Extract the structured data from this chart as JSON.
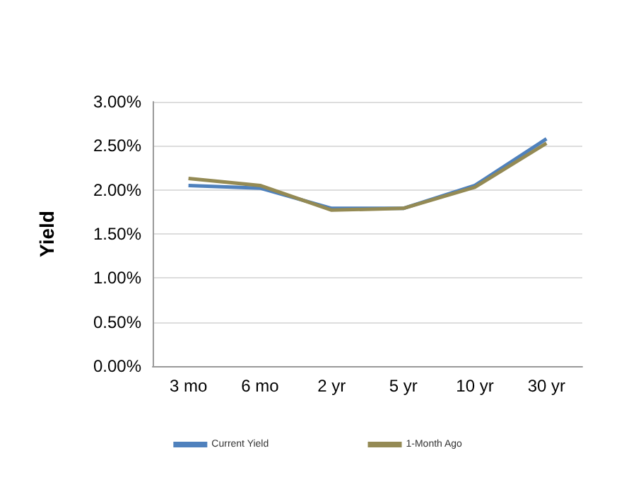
{
  "chart_data": {
    "type": "line",
    "ylabel": "Yield",
    "categories": [
      "3 mo",
      "6 mo",
      "2 yr",
      "5 yr",
      "10 yr",
      "30 yr"
    ],
    "series": [
      {
        "name": "Current Yield",
        "color": "#4f81bd",
        "values": [
          2.05,
          2.02,
          1.79,
          1.79,
          2.05,
          2.58
        ]
      },
      {
        "name": "1-Month Ago",
        "color": "#948a54",
        "values": [
          2.13,
          2.05,
          1.77,
          1.79,
          2.03,
          2.53
        ]
      }
    ],
    "ylim": [
      0,
      3
    ],
    "yticks": [
      {
        "value": 0,
        "label": "0.00%"
      },
      {
        "value": 0.5,
        "label": "0.50%"
      },
      {
        "value": 1,
        "label": "1.00%"
      },
      {
        "value": 1.5,
        "label": "1.50%"
      },
      {
        "value": 2,
        "label": "2.00%"
      },
      {
        "value": 2.5,
        "label": "2.50%"
      },
      {
        "value": 3,
        "label": "3.00%"
      }
    ],
    "grid": "y",
    "legend": "bottom",
    "marker": "none",
    "line_style": "solid"
  }
}
